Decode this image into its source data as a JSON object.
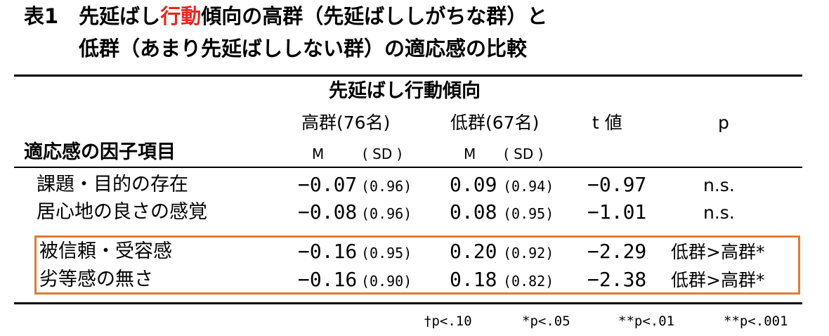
{
  "title": {
    "line1_prefix": "表1　先延ばし",
    "line1_highlight": "行動",
    "line1_suffix": "傾向の高群（先延ばししがちな群）と",
    "line2": "低群（あまり先延ばししない群）の適応感の比較",
    "highlight_color": "#e8281e"
  },
  "table": {
    "group_header": "先延ばし行動傾向",
    "row_header": "適応感の因子項目",
    "columns": {
      "high": "高群(76名)",
      "low": "低群(67名)",
      "t": "t 値",
      "p": "p"
    },
    "subheaders": {
      "high_m": "M",
      "high_sd": "( SD )",
      "low_m": "M",
      "low_sd": "( SD )"
    },
    "rows": [
      {
        "label": "課題・目的の存在",
        "high_m": "−0.07",
        "high_sd": "(0.96)",
        "low_m": "0.09",
        "low_sd": "(0.94)",
        "t": "−0.97",
        "p": "n.s."
      },
      {
        "label": "居心地の良さの感覚",
        "high_m": "−0.08",
        "high_sd": "(0.96)",
        "low_m": "0.08",
        "low_sd": "(0.95)",
        "t": "−1.01",
        "p": "n.s."
      },
      {
        "label": "被信頼・受容感",
        "high_m": "−0.16",
        "high_sd": "(0.95)",
        "low_m": "0.20",
        "low_sd": "(0.92)",
        "t": "−2.29",
        "p": "低群>高群*"
      },
      {
        "label": "劣等感の無さ",
        "high_m": "−0.16",
        "high_sd": "(0.90)",
        "low_m": "0.18",
        "low_sd": "(0.82)",
        "t": "−2.38",
        "p": "低群>高群*"
      }
    ],
    "highlight_box_color": "#e07a35"
  },
  "footnote": {
    "f1": "†p<.10",
    "f2": "*p<.05",
    "f3": "**p<.01",
    "f4": "**p<.001"
  }
}
